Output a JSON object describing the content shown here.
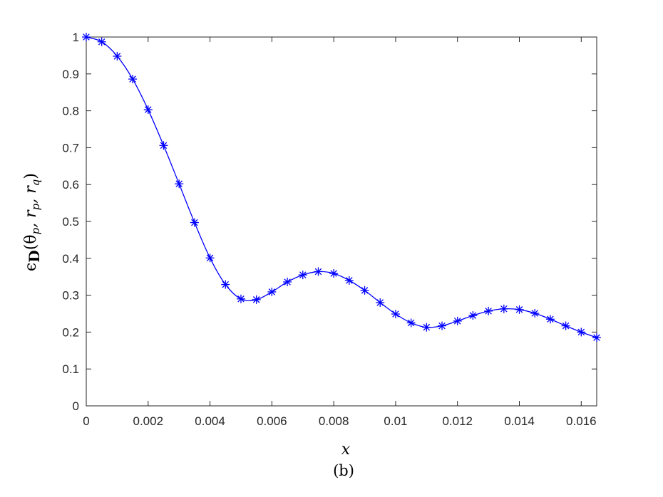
{
  "chart_data": {
    "type": "line",
    "xlabel": "x",
    "ylabel": "ϵD(θp, rp, rq)",
    "ylabel_parts": {
      "epsilon": "ϵ",
      "subscript": "D",
      "args": "(θ",
      "sub_p1": "p",
      "comma_r1": ", r",
      "sub_p2": "p",
      "comma_r2": ", r",
      "sub_q": "q",
      "close": ")"
    },
    "caption": "(b)",
    "xlim": [
      0,
      0.0165
    ],
    "ylim": [
      0,
      1
    ],
    "xticks": [
      "0",
      "0.002",
      "0.004",
      "0.006",
      "0.008",
      "0.01",
      "0.012",
      "0.014",
      "0.016"
    ],
    "xtick_values": [
      0,
      0.002,
      0.004,
      0.006,
      0.008,
      0.01,
      0.012,
      0.014,
      0.016
    ],
    "yticks": [
      "0",
      "0.1",
      "0.2",
      "0.3",
      "0.4",
      "0.5",
      "0.6",
      "0.7",
      "0.8",
      "0.9",
      "1"
    ],
    "ytick_values": [
      0,
      0.1,
      0.2,
      0.3,
      0.4,
      0.5,
      0.6,
      0.7,
      0.8,
      0.9,
      1
    ],
    "grid": false,
    "series": [
      {
        "color": "#0000ff",
        "marker": "asterisk",
        "x": [
          0,
          0.0005,
          0.001,
          0.0015,
          0.002,
          0.0025,
          0.003,
          0.0035,
          0.004,
          0.0045,
          0.005,
          0.0055,
          0.006,
          0.0065,
          0.007,
          0.0075,
          0.008,
          0.0085,
          0.009,
          0.0095,
          0.01,
          0.0105,
          0.011,
          0.0115,
          0.012,
          0.0125,
          0.013,
          0.0135,
          0.014,
          0.0145,
          0.015,
          0.0155,
          0.016,
          0.0165
        ],
        "y": [
          1.0,
          0.987,
          0.948,
          0.886,
          0.803,
          0.706,
          0.602,
          0.497,
          0.401,
          0.329,
          0.29,
          0.288,
          0.309,
          0.336,
          0.355,
          0.364,
          0.359,
          0.34,
          0.313,
          0.28,
          0.249,
          0.225,
          0.213,
          0.217,
          0.23,
          0.245,
          0.257,
          0.263,
          0.261,
          0.251,
          0.235,
          0.217,
          0.2,
          0.185
        ]
      }
    ]
  }
}
